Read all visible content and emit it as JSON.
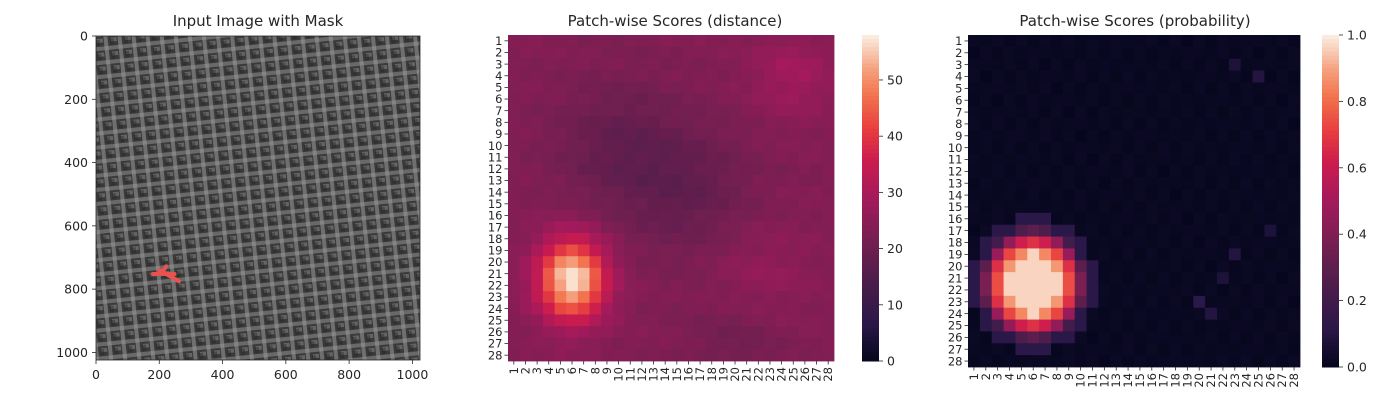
{
  "figure": {
    "panels": [
      {
        "title": "Input Image with Mask"
      },
      {
        "title": "Patch-wise Scores (distance)"
      },
      {
        "title": "Patch-wise Scores (probability)"
      }
    ]
  },
  "chart_data": [
    {
      "type": "image",
      "title": "Input Image with Mask",
      "xlim": [
        0,
        1024
      ],
      "ylim": [
        1024,
        0
      ],
      "x_ticks": [
        0,
        200,
        400,
        600,
        800,
        1000
      ],
      "y_ticks": [
        0,
        200,
        400,
        600,
        800,
        1000
      ],
      "image_description_colors": {
        "fabric_dark": "#3a3a3a",
        "fabric_light": "#8f8f8f",
        "mask": "#e8524f"
      },
      "mask": {
        "strokes": [
          {
            "from": [
              180,
              752
            ],
            "to": [
              248,
              752
            ]
          },
          {
            "from": [
              200,
              740
            ],
            "to": [
              262,
              775
            ]
          },
          {
            "from": [
              205,
              752
            ],
            "to": [
              222,
              728
            ]
          }
        ]
      }
    },
    {
      "type": "heatmap",
      "title": "Patch-wise Scores (distance)",
      "rows": 28,
      "cols": 28,
      "tick_labels": [
        "1",
        "2",
        "3",
        "4",
        "5",
        "6",
        "7",
        "8",
        "9",
        "10",
        "11",
        "12",
        "13",
        "14",
        "15",
        "16",
        "17",
        "18",
        "19",
        "20",
        "21",
        "22",
        "23",
        "24",
        "25",
        "26",
        "27",
        "28"
      ],
      "colorbar": {
        "min": 0,
        "max": 58,
        "ticks": [
          0,
          10,
          20,
          30,
          40,
          50
        ]
      },
      "colormap": "rocket",
      "model": {
        "baseline": 24,
        "hotspot": {
          "center_row": 21.5,
          "center_col": 6,
          "peak": 58,
          "sigma_row": 2.4,
          "sigma_col": 2.0
        },
        "bumps": [
          {
            "row": 4,
            "col": 25,
            "amp": 5,
            "sigma": 2.5
          },
          {
            "row": 21,
            "col": 22,
            "amp": 3,
            "sigma": 3
          }
        ],
        "low_regions": [
          {
            "row": 10,
            "col": 10,
            "amp": -5,
            "sigma": 4
          },
          {
            "row": 14,
            "col": 16,
            "amp": -5,
            "sigma": 4
          },
          {
            "row": 27,
            "col": 20,
            "amp": -3,
            "sigma": 3
          }
        ]
      }
    },
    {
      "type": "heatmap",
      "title": "Patch-wise Scores (probability)",
      "rows": 28,
      "cols": 28,
      "tick_labels": [
        "1",
        "2",
        "3",
        "4",
        "5",
        "6",
        "7",
        "8",
        "9",
        "10",
        "11",
        "12",
        "13",
        "14",
        "15",
        "16",
        "17",
        "18",
        "19",
        "20",
        "21",
        "22",
        "23",
        "24",
        "25",
        "26",
        "27",
        "28"
      ],
      "colorbar": {
        "min": 0.0,
        "max": 1.0,
        "ticks": [
          0.0,
          0.2,
          0.4,
          0.6,
          0.8,
          1.0
        ]
      },
      "colorbar_tick_labels": [
        "0.0",
        "0.2",
        "0.4",
        "0.6",
        "0.8",
        "1.0"
      ],
      "colormap": "rocket",
      "model": {
        "hotspot": {
          "center_row": 21.5,
          "center_col": 6,
          "core_rx": 3.4,
          "core_ry": 3.6
        },
        "noise_cells": [
          {
            "row": 3,
            "col": 23,
            "value": 0.08
          },
          {
            "row": 4,
            "col": 25,
            "value": 0.1
          },
          {
            "row": 19,
            "col": 23,
            "value": 0.1
          },
          {
            "row": 21,
            "col": 22,
            "value": 0.08
          },
          {
            "row": 23,
            "col": 20,
            "value": 0.12
          },
          {
            "row": 24,
            "col": 21,
            "value": 0.1
          },
          {
            "row": 17,
            "col": 26,
            "value": 0.08
          }
        ]
      }
    }
  ]
}
